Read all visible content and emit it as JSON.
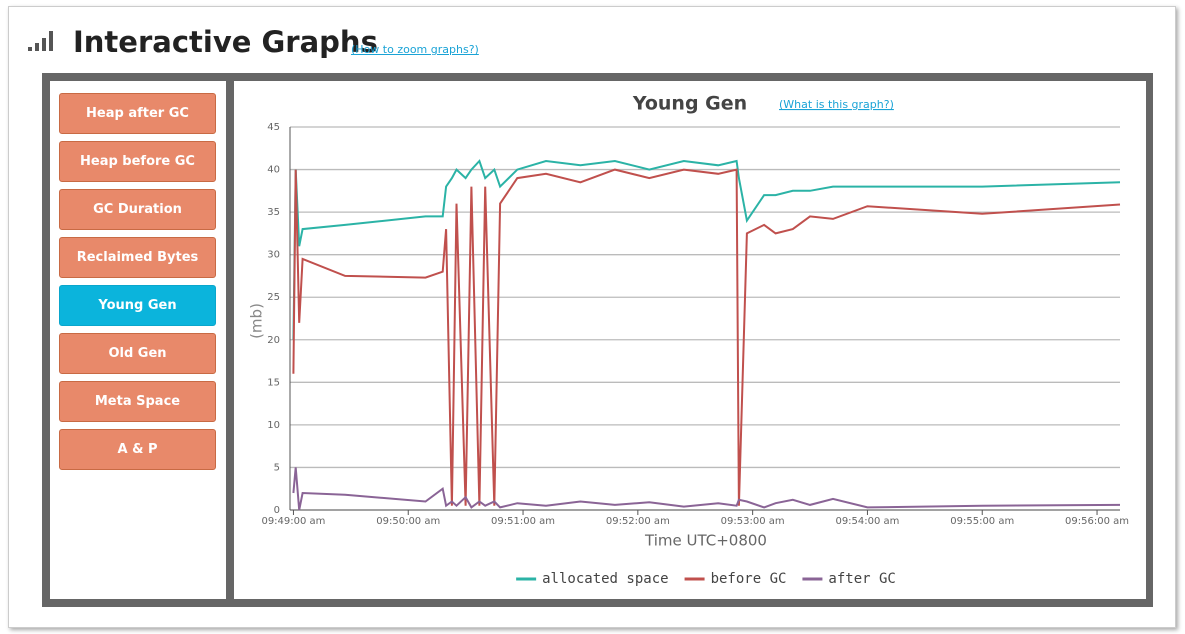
{
  "header": {
    "title": "Interactive Graphs",
    "link": "(How to zoom graphs?)"
  },
  "nav": [
    {
      "label": "Heap after GC",
      "active": false
    },
    {
      "label": "Heap before GC",
      "active": false
    },
    {
      "label": "GC Duration",
      "active": false
    },
    {
      "label": "Reclaimed Bytes",
      "active": false
    },
    {
      "label": "Young Gen",
      "active": true
    },
    {
      "label": "Old Gen",
      "active": false
    },
    {
      "label": "Meta Space",
      "active": false
    },
    {
      "label": "A & P",
      "active": false
    }
  ],
  "chart_data": {
    "type": "line",
    "title": "Young Gen",
    "link": "(What is this graph?)",
    "y_label": "(mb)",
    "x_label": "Time UTC+0800",
    "x": [
      589.0,
      589.02,
      589.05,
      589.08,
      589.45,
      590.15,
      590.3,
      590.33,
      590.38,
      590.42,
      590.5,
      590.55,
      590.62,
      590.67,
      590.75,
      590.8,
      590.95,
      591.2,
      591.5,
      591.8,
      592.1,
      592.4,
      592.7,
      592.86,
      592.88,
      592.95,
      593.1,
      593.2,
      593.35,
      593.5,
      593.7,
      594.0,
      595.0,
      596.2
    ],
    "xlim": [
      588.97,
      596.2
    ],
    "xticks": [
      {
        "value": 589,
        "label": "09:49:00 am"
      },
      {
        "value": 590,
        "label": "09:50:00 am"
      },
      {
        "value": 591,
        "label": "09:51:00 am"
      },
      {
        "value": 592,
        "label": "09:52:00 am"
      },
      {
        "value": 593,
        "label": "09:53:00 am"
      },
      {
        "value": 594,
        "label": "09:54:00 am"
      },
      {
        "value": 595,
        "label": "09:55:00 am"
      },
      {
        "value": 596,
        "label": "09:56:00 am"
      }
    ],
    "ylim": [
      0,
      45
    ],
    "yticks": [
      0,
      5,
      10,
      15,
      20,
      25,
      30,
      35,
      40,
      45
    ],
    "grid": true,
    "legend": "bottom",
    "series": [
      {
        "name": "allocated space",
        "color": "#2bb3a6",
        "values": [
          20,
          40,
          31,
          33,
          33.5,
          34.5,
          34.5,
          38,
          39,
          40,
          39,
          40,
          41,
          39,
          40,
          38,
          40,
          41,
          40.5,
          41,
          40,
          41,
          40.5,
          41,
          39,
          34,
          37,
          37,
          37.5,
          37.5,
          38,
          38,
          38,
          38.5
        ]
      },
      {
        "name": "before GC",
        "color": "#c0504d",
        "values": [
          16,
          40,
          22,
          29.5,
          27.5,
          27.3,
          28,
          33,
          0.5,
          36,
          0.5,
          38,
          0.5,
          38,
          0.5,
          36,
          39,
          39.5,
          38.5,
          40,
          39,
          40,
          39.5,
          40,
          0.5,
          32.5,
          33.5,
          32.5,
          33,
          34.5,
          34.2,
          35.7,
          34.8,
          35.9
        ]
      },
      {
        "name": "after GC",
        "color": "#8a6496",
        "values": [
          2,
          5,
          0,
          2,
          1.8,
          1,
          2.5,
          0.5,
          1,
          0.5,
          1.5,
          0.3,
          1,
          0.5,
          1,
          0.3,
          0.8,
          0.5,
          1,
          0.6,
          0.9,
          0.4,
          0.8,
          0.5,
          1.2,
          1,
          0.3,
          0.8,
          1.2,
          0.6,
          1.3,
          0.3,
          0.5,
          0.6
        ]
      }
    ]
  }
}
